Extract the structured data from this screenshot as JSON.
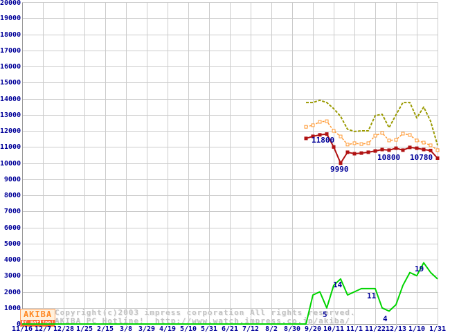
{
  "watermark": {
    "logo_top": "AKIBA",
    "logo_bottom": "PC Hotline!",
    "line1": "Copyright(c)2003 impress corporation All rights reserved.",
    "line2": "AKIBA PC Hotline!  http://www.watch.impress.co.jp/akiba/"
  },
  "colors": {
    "background": "#ffffff",
    "grid": "#cbcbcb",
    "axis": "#9a9a9a",
    "axis_text": "#000099",
    "annotation_text": "#000099",
    "highest_price": "#9a9a00",
    "average_price": "#ff9933",
    "lowest_price": "#b01212",
    "shop_count": "#00d400",
    "watermark_text": "#c2c2c2",
    "logo_orange": "#ff8822",
    "logo_bar": "#ff6633"
  },
  "chart_data": {
    "type": "line",
    "title": "",
    "xlabel": "",
    "ylabel": "",
    "y_axis": {
      "min": 0,
      "max": 20000,
      "step": 1000
    },
    "grid": true,
    "legend": "none",
    "x_tick_labels": [
      "11/16",
      "12/7",
      "12/28",
      "1/25",
      "2/15",
      "3/8",
      "3/29",
      "4/19",
      "5/10",
      "5/31",
      "6/21",
      "7/12",
      "8/2",
      "8/30",
      "9/20",
      "10/11",
      "11/1",
      "11/22",
      "12/13",
      "1/10",
      "1/31"
    ],
    "series": [
      {
        "name": "highest-price",
        "color": "#9a9a00",
        "dash": "4,2",
        "width": 2,
        "marker": "none",
        "values": [
          13760,
          13760,
          13900,
          13760,
          13380,
          12900,
          12100,
          11960,
          12000,
          12000,
          12950,
          13030,
          12200,
          13000,
          13760,
          13760,
          12800,
          13480,
          12600,
          11100
        ]
      },
      {
        "name": "average-price",
        "color": "#ff9933",
        "dash": "3,2",
        "width": 1.5,
        "marker": "open-square",
        "values": [
          12250,
          12350,
          12560,
          12600,
          12000,
          11650,
          11150,
          11230,
          11180,
          11230,
          11700,
          11870,
          11400,
          11440,
          11830,
          11740,
          11400,
          11270,
          11100,
          10800
        ]
      },
      {
        "name": "lowest-price",
        "color": "#b01212",
        "dash": "",
        "width": 2,
        "marker": "filled-square",
        "values": [
          11530,
          11660,
          11750,
          11800,
          11000,
          9990,
          10670,
          10580,
          10620,
          10670,
          10750,
          10840,
          10800,
          10920,
          10800,
          10970,
          10920,
          10840,
          10780,
          10300
        ]
      },
      {
        "name": "shop-count",
        "color": "#00d400",
        "dash": "",
        "width": 2,
        "marker": "none",
        "value_scale": 200,
        "baseline_extend": true,
        "values": [
          0,
          9,
          10,
          5,
          12,
          14,
          9,
          10,
          11,
          11,
          11,
          5,
          4,
          6,
          12,
          16,
          15,
          19,
          16,
          14
        ]
      }
    ],
    "annotations": [
      {
        "text": "11800",
        "x": 450,
        "y": 197
      },
      {
        "text": "9990",
        "x": 477,
        "y": 239
      },
      {
        "text": "10800",
        "x": 545,
        "y": 222
      },
      {
        "text": "10780",
        "x": 592,
        "y": 222
      },
      {
        "text": "5",
        "x": 466,
        "y": 449
      },
      {
        "text": "14",
        "x": 481,
        "y": 406
      },
      {
        "text": "11",
        "x": 530,
        "y": 422
      },
      {
        "text": "4",
        "x": 553,
        "y": 455
      },
      {
        "text": "19",
        "x": 599,
        "y": 383
      }
    ]
  }
}
